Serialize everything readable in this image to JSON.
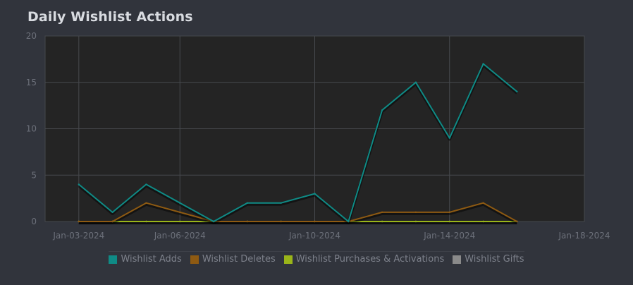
{
  "title": "Daily Wishlist Actions",
  "chart_data": {
    "type": "line",
    "title": "Daily Wishlist Actions",
    "xlabel": "",
    "ylabel": "",
    "ylim": [
      0,
      20
    ],
    "xlim": [
      "2024-01-02",
      "2024-01-18"
    ],
    "y_ticks": [
      0,
      5,
      10,
      15,
      20
    ],
    "x_ticks": [
      "Jan-03-2024",
      "Jan-06-2024",
      "Jan-10-2024",
      "Jan-14-2024",
      "Jan-18-2024"
    ],
    "x": [
      "2024-01-03",
      "2024-01-04",
      "2024-01-05",
      "2024-01-06",
      "2024-01-07",
      "2024-01-08",
      "2024-01-09",
      "2024-01-10",
      "2024-01-11",
      "2024-01-12",
      "2024-01-13",
      "2024-01-14",
      "2024-01-15",
      "2024-01-16",
      "2024-01-17"
    ],
    "series": [
      {
        "name": "Wishlist Adds",
        "color": "#0f8b86",
        "values": [
          4,
          1,
          4,
          2,
          0,
          2,
          2,
          3,
          0,
          12,
          15,
          9,
          17,
          14,
          null
        ]
      },
      {
        "name": "Wishlist Deletes",
        "color": "#8e5a12",
        "values": [
          0,
          0,
          2,
          1,
          0,
          0,
          0,
          0,
          0,
          1,
          1,
          1,
          2,
          0,
          null
        ]
      },
      {
        "name": "Wishlist Purchases & Activations",
        "color": "#9ab519",
        "values": [
          0,
          0,
          0,
          0,
          0,
          0,
          0,
          0,
          0,
          0,
          0,
          0,
          0,
          0,
          null
        ]
      },
      {
        "name": "Wishlist Gifts",
        "color": "#8a8a8a",
        "values": [
          0,
          0,
          0,
          0,
          0,
          0,
          0,
          0,
          0,
          0,
          0,
          0,
          0,
          0,
          null
        ]
      }
    ],
    "grid": true,
    "legend_position": "bottom"
  }
}
